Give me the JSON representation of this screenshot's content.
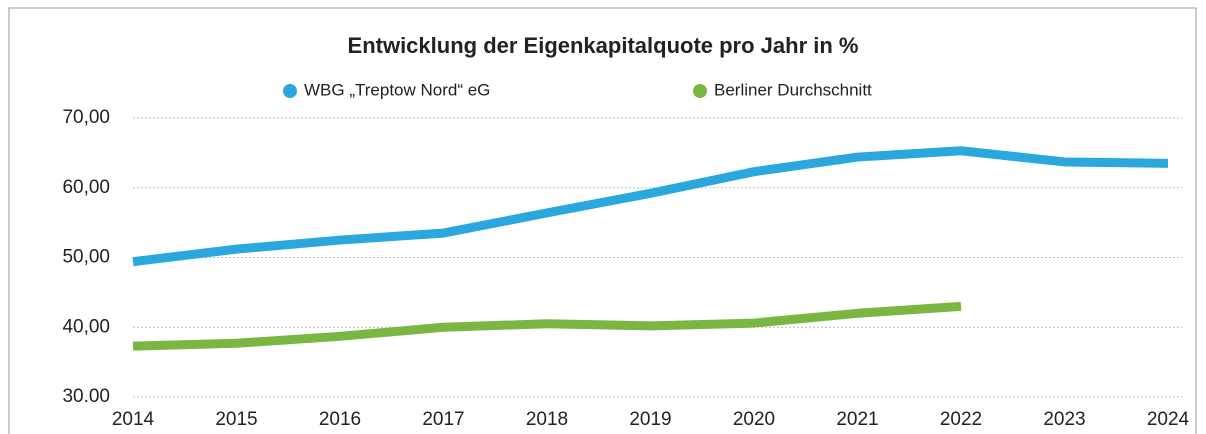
{
  "chart_data": {
    "type": "line",
    "title": "Entwicklung der Eigenkapitalquote pro Jahr in %",
    "categories": [
      "2014",
      "2015",
      "2016",
      "2017",
      "2018",
      "2019",
      "2020",
      "2021",
      "2022",
      "2023",
      "2024"
    ],
    "series": [
      {
        "name": "WBG „Treptow Nord“ eG",
        "color": "#2aa7dc",
        "values": [
          49.4,
          51.2,
          52.5,
          53.5,
          56.4,
          59.2,
          62.3,
          64.4,
          65.3,
          63.7,
          63.5
        ]
      },
      {
        "name": "Berliner Durchschnitt",
        "color": "#7ab642",
        "values": [
          37.3,
          37.7,
          38.7,
          40.0,
          40.5,
          40.2,
          40.6,
          42.0,
          43.0,
          null,
          null
        ]
      }
    ],
    "ylim": [
      30,
      70
    ],
    "yticks": [
      {
        "value": 30,
        "label": "30.00"
      },
      {
        "value": 40,
        "label": "40,00"
      },
      {
        "value": 50,
        "label": "50,00"
      },
      {
        "value": 60,
        "label": "60,00"
      },
      {
        "value": 70,
        "label": "70,00"
      }
    ],
    "grid": true,
    "legend": "top"
  }
}
